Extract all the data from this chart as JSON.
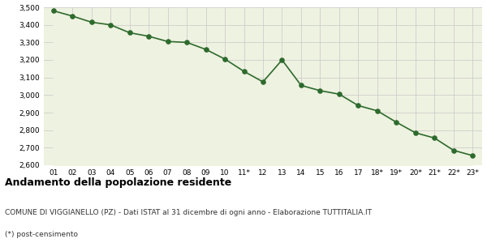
{
  "labels": [
    "01",
    "02",
    "03",
    "04",
    "05",
    "06",
    "07",
    "08",
    "09",
    "10",
    "11*",
    "12",
    "13",
    "14",
    "15",
    "16",
    "17",
    "18*",
    "19*",
    "20*",
    "21*",
    "22*",
    "23*"
  ],
  "values": [
    3480,
    3450,
    3415,
    3400,
    3355,
    3335,
    3305,
    3300,
    3260,
    3205,
    3135,
    3075,
    3200,
    3055,
    3025,
    3005,
    2940,
    2910,
    2845,
    2785,
    2755,
    2685,
    2655
  ],
  "ylim": [
    2600,
    3500
  ],
  "yticks": [
    2600,
    2700,
    2800,
    2900,
    3000,
    3100,
    3200,
    3300,
    3400,
    3500
  ],
  "line_color": "#2d6a2d",
  "fill_color": "#eef2e0",
  "marker_color": "#2d6a2d",
  "grid_color": "#c8c8c8",
  "title": "Andamento della popolazione residente",
  "subtitle": "COMUNE DI VIGGIANELLO (PZ) - Dati ISTAT al 31 dicembre di ogni anno - Elaborazione TUTTITALIA.IT",
  "footnote": "(*) post-censimento",
  "title_fontsize": 9,
  "subtitle_fontsize": 6.5,
  "footnote_fontsize": 6.5,
  "tick_fontsize": 6.5
}
